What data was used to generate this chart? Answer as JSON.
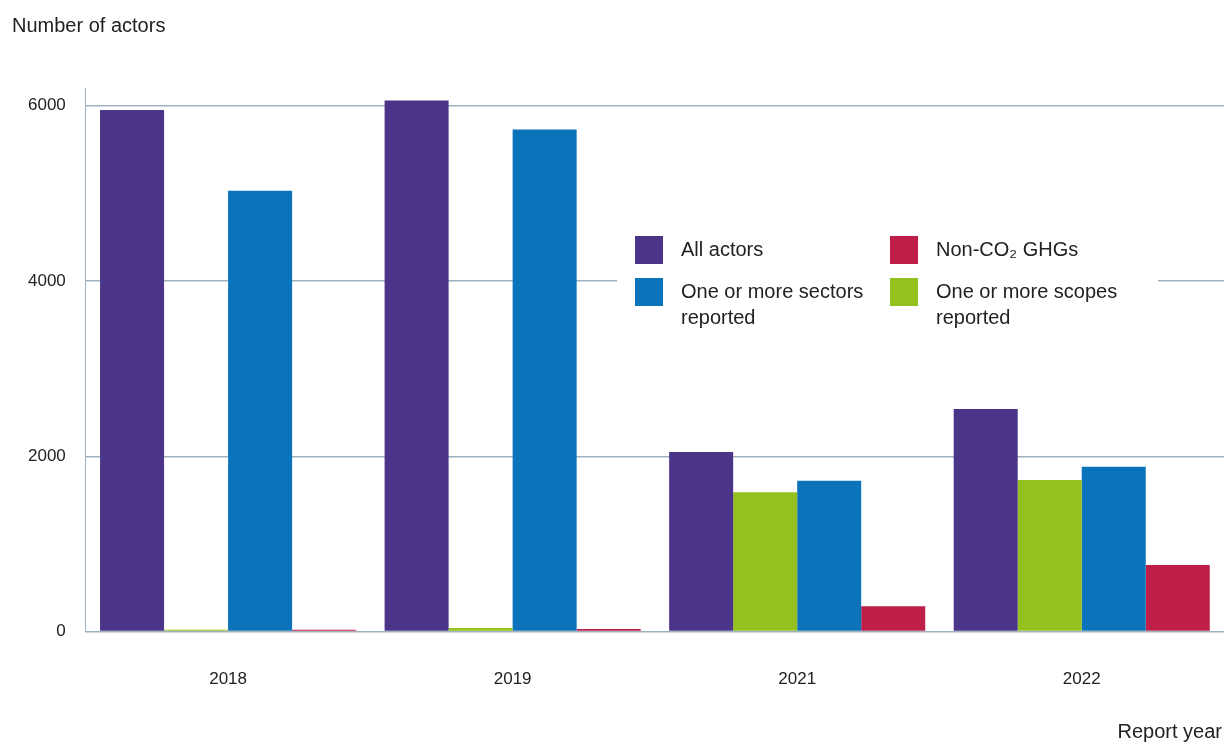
{
  "chart_data": {
    "type": "bar",
    "xlabel": "Report year",
    "ylabel": "Number of actors",
    "categories": [
      "2018",
      "2019",
      "2021",
      "2022"
    ],
    "series": [
      {
        "name": "All actors",
        "color": "#4b3588",
        "values": [
          5950,
          6060,
          2050,
          2540
        ]
      },
      {
        "name": "One or more scopes reported",
        "color": "#95c11f",
        "values": [
          20,
          40,
          1590,
          1730
        ]
      },
      {
        "name": "One or more sectors reported",
        "color": "#0b73ba",
        "values": [
          5030,
          5730,
          1720,
          1880
        ]
      },
      {
        "name": "Non-CO₂ GHGs",
        "color": "#be1e48",
        "values": [
          20,
          30,
          290,
          760
        ]
      }
    ],
    "ylim": [
      0,
      6200
    ],
    "yticks": [
      0,
      2000,
      4000,
      6000
    ],
    "grid": "y",
    "legend": "top right"
  }
}
